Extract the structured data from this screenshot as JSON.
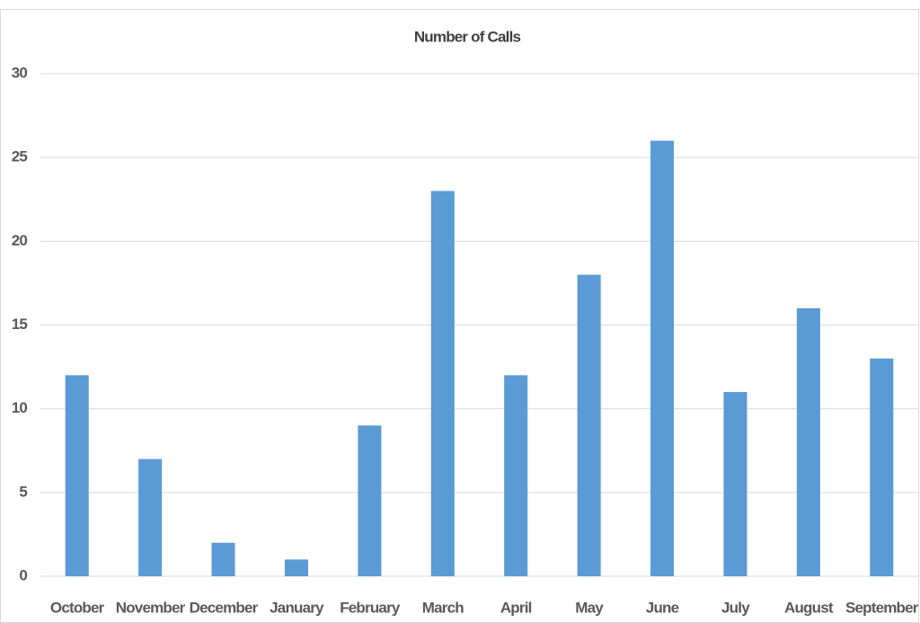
{
  "chart_data": {
    "type": "bar",
    "title": "Number of Calls",
    "categories": [
      "October",
      "November",
      "December",
      "January",
      "February",
      "March",
      "April",
      "May",
      "June",
      "July",
      "August",
      "September"
    ],
    "values": [
      12,
      7,
      2,
      1,
      9,
      23,
      12,
      18,
      26,
      11,
      16,
      13
    ],
    "color": "#5b9bd5",
    "ylim": [
      0,
      30
    ],
    "yticks": [
      0,
      5,
      10,
      15,
      20,
      25,
      30
    ],
    "grid": true
  }
}
